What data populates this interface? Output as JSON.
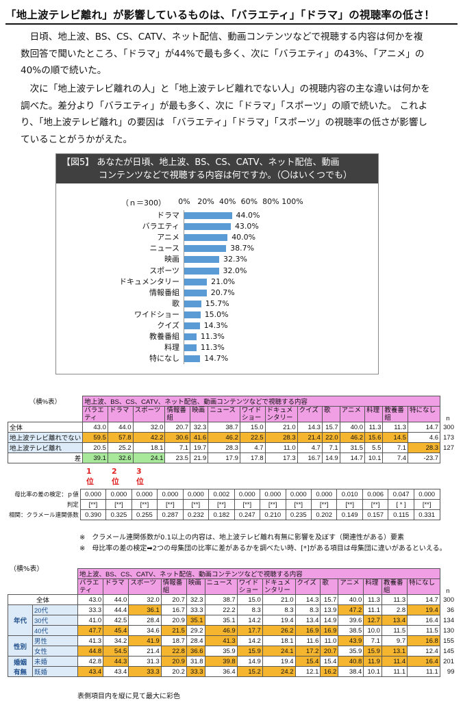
{
  "heading": "「地上波テレビ離れ」が影響しているものは、「バラエティ」「ドラマ」の視聴率の低さ！",
  "paragraphs": [
    "　日頃、地上波、BS、CS、CATV、ネット配信、動画コンテンツなどで視聴する内容は何かを複数回答で聞いたところ、「ドラマ」が44%で最も多く、次に「バラエティ」の43%、「アニメ」の40%の順で続いた。",
    "　次に「地上波テレビ離れの人」と「地上波テレビ離れでない人」の視聴内容の主な違いは何かを調べた。差分より「バラエティ」が最も多く、次に「ドラマ」「スポーツ」の順で続いた。 これより、「地上波テレビ離れ」の要因は 「バラエティ」「ドラマ」「スポーツ」の視聴率の低さが影響していることがうかがえた。"
  ],
  "figure": {
    "title_line1": "【図5】 あなたが日頃、地上波、BS、CS、CATV、ネット配信、動画",
    "title_line2": "コンテンツなどで視聴する内容は何ですか。（〇はいくつでも）",
    "n_label": "（ｎ＝300）",
    "bar_color": "#5b9bd5"
  },
  "chart_data": {
    "type": "bar",
    "orientation": "horizontal",
    "title": "あなたが日頃、地上波、BS、CS、CATV、ネット配信、動画コンテンツなどで視聴する内容は何ですか。（〇はいくつでも）",
    "x_ticks": [
      "0%",
      "20%",
      "40%",
      "60%",
      "80%",
      "100%"
    ],
    "xlim": [
      0,
      100
    ],
    "categories": [
      "ドラマ",
      "バラエティ",
      "アニメ",
      "ニュース",
      "映画",
      "スポーツ",
      "ドキュメンタリー",
      "情報番組",
      "歌",
      "ワイドショー",
      "クイズ",
      "教養番組",
      "料理",
      "特になし"
    ],
    "values": [
      44.0,
      43.0,
      40.0,
      38.7,
      32.3,
      32.0,
      21.0,
      20.7,
      15.7,
      15.0,
      14.3,
      11.3,
      11.3,
      14.7
    ],
    "labels": [
      "44.0%",
      "43.0%",
      "40.0%",
      "38.7%",
      "32.3%",
      "32.0%",
      "21.0%",
      "20.7%",
      "15.7%",
      "15.0%",
      "14.3%",
      "11.3%",
      "11.3%",
      "14.7%"
    ]
  },
  "table1": {
    "stub_label": "（横%表）",
    "super_header": "地上波、BS、CS、CATV、ネット配信、動画コンテンツなどで視聴する内容",
    "columns": [
      "バラエ\nティ",
      "ドラマ",
      "スポーツ",
      "情報番\n組",
      "映画",
      "ニュース",
      "ワイド\nショー",
      "ドキュメ\nンタリー",
      "クイズ",
      "歌",
      "アニメ",
      "料理",
      "教養番\n組",
      "特になし"
    ],
    "n_header": "n",
    "rows": [
      {
        "label": "全体",
        "values": [
          "43.0",
          "44.0",
          "32.0",
          "20.7",
          "32.3",
          "38.7",
          "15.0",
          "21.0",
          "14.3",
          "15.7",
          "40.0",
          "11.3",
          "11.3",
          "14.7"
        ],
        "n": "300"
      },
      {
        "label": "地上波テレビ離れでない",
        "values": [
          "59.5",
          "57.8",
          "42.2",
          "30.6",
          "41.6",
          "46.2",
          "22.5",
          "28.3",
          "21.4",
          "22.0",
          "46.2",
          "15.6",
          "14.5",
          "4.6"
        ],
        "n": "173"
      },
      {
        "label": "地上波テレビ離れ",
        "values": [
          "20.5",
          "25.2",
          "18.1",
          "7.1",
          "19.7",
          "28.3",
          "4.7",
          "11.0",
          "4.7",
          "7.1",
          "31.5",
          "5.5",
          "7.1",
          "28.3"
        ],
        "n": "127"
      },
      {
        "label": "差",
        "values": [
          "39.1",
          "32.6",
          "24.1",
          "23.5",
          "21.9",
          "17.9",
          "17.8",
          "17.3",
          "16.7",
          "14.9",
          "14.7",
          "10.1",
          "7.4",
          "-23.7"
        ],
        "n": ""
      }
    ],
    "ranks": [
      "1位",
      "2位",
      "3位"
    ]
  },
  "table2": {
    "row1_label": "母比率の差の検定：ｐ値",
    "row2_label": "判定",
    "row3_label": "相関：クラメール連関係数",
    "p_values": [
      "0.000",
      "0.000",
      "0.000",
      "0.000",
      "0.000",
      "0.002",
      "0.000",
      "0.000",
      "0.000",
      "0.000",
      "0.010",
      "0.006",
      "0.047",
      "0.000"
    ],
    "judgements": [
      "[**]",
      "[**]",
      "[**]",
      "[**]",
      "[**]",
      "[**]",
      "[**]",
      "[**]",
      "[**]",
      "[**]",
      "[**]",
      "[**]",
      "[ * ]",
      "[**]"
    ],
    "cramer": [
      "0.390",
      "0.325",
      "0.255",
      "0.287",
      "0.232",
      "0.182",
      "0.247",
      "0.210",
      "0.235",
      "0.202",
      "0.149",
      "0.157",
      "0.115",
      "0.331"
    ]
  },
  "notes": [
    "※　クラメール連関係数が0.1以上の内容は、地上波テレビ離れ有無に影響を及ぼす（関連性がある）要素",
    "※　母比率の差の検定➡2つの母集団の比率に差があるかを調べたい時、[*]がある項目は母集団に違いがあるといえる。"
  ],
  "table3": {
    "stub_label": "（横%表）",
    "super_header": "地上波、BS、CS、CATV、ネット配信、動画コンテンツなどで視聴する内容",
    "columns": [
      "バラエ\nティ",
      "ドラマ",
      "スポーツ",
      "情報番\n組",
      "映画",
      "ニュース",
      "ワイド\nショー",
      "ドキュメ\nンタリー",
      "クイズ",
      "歌",
      "アニメ",
      "料理",
      "教養番\n組",
      "特になし"
    ],
    "n_header": "n",
    "total": {
      "label": "全体",
      "values": [
        "43.0",
        "44.0",
        "32.0",
        "20.7",
        "32.3",
        "38.7",
        "15.0",
        "21.0",
        "14.3",
        "15.7",
        "40.0",
        "11.3",
        "11.3",
        "14.7"
      ],
      "n": "300"
    },
    "groups": [
      {
        "name": "年代",
        "rows": [
          {
            "label": "20代",
            "values": [
              "33.3",
              "44.4",
              "36.1",
              "16.7",
              "33.3",
              "22.2",
              "8.3",
              "8.3",
              "8.3",
              "13.9",
              "47.2",
              "11.1",
              "2.8",
              "19.4"
            ],
            "n": "36"
          },
          {
            "label": "30代",
            "values": [
              "41.0",
              "42.5",
              "28.4",
              "20.9",
              "35.1",
              "35.1",
              "14.2",
              "19.4",
              "13.4",
              "14.9",
              "39.6",
              "12.7",
              "13.4",
              "16.4"
            ],
            "n": "134"
          },
          {
            "label": "40代",
            "values": [
              "47.7",
              "45.4",
              "34.6",
              "21.5",
              "29.2",
              "46.9",
              "17.7",
              "26.2",
              "16.9",
              "16.9",
              "38.5",
              "10.0",
              "11.5",
              "11.5"
            ],
            "n": "130"
          }
        ]
      },
      {
        "name": "性別",
        "rows": [
          {
            "label": "男性",
            "values": [
              "41.3",
              "34.2",
              "41.9",
              "18.7",
              "28.4",
              "41.3",
              "14.2",
              "18.1",
              "11.6",
              "11.0",
              "43.9",
              "7.1",
              "9.7",
              "16.8"
            ],
            "n": "155"
          },
          {
            "label": "女性",
            "values": [
              "44.8",
              "54.5",
              "21.4",
              "22.8",
              "36.6",
              "35.9",
              "15.9",
              "24.1",
              "17.2",
              "20.7",
              "35.9",
              "15.9",
              "13.1",
              "12.4"
            ],
            "n": "145"
          }
        ]
      },
      {
        "name": "婚姻\n有無",
        "rows": [
          {
            "label": "未婚",
            "values": [
              "42.8",
              "44.3",
              "31.3",
              "20.9",
              "31.8",
              "39.8",
              "14.9",
              "19.4",
              "15.4",
              "15.4",
              "40.8",
              "11.9",
              "11.4",
              "16.4"
            ],
            "n": "201"
          },
          {
            "label": "既婚",
            "values": [
              "43.4",
              "43.4",
              "33.3",
              "20.2",
              "33.3",
              "36.4",
              "15.2",
              "24.2",
              "12.1",
              "16.2",
              "38.4",
              "10.1",
              "11.1",
              "11.1"
            ],
            "n": "99"
          }
        ]
      }
    ],
    "footnote": "表側項目内を縦に見て最大に彩色"
  },
  "colors": {
    "pink_header": "#f19fe5",
    "orange_highlight": "#f6b52e",
    "green_highlight": "#a7e89a",
    "bar": "#5b9bd5",
    "rank_red": "#e02020"
  }
}
